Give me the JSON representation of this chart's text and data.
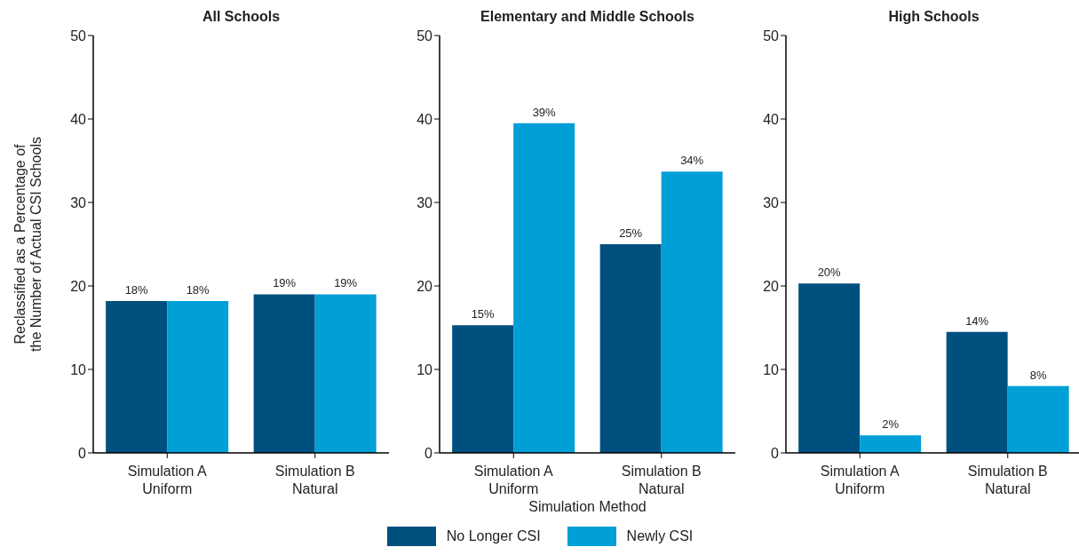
{
  "chart_data": [
    {
      "type": "bar",
      "title": "All Schools",
      "legend": "bottom",
      "ylabel": "Reclassified as a Percentage of\nthe Number of Actual CSI Schools",
      "categories": [
        "Simulation A\nUniform",
        "Simulation B\nNatural"
      ],
      "ylim": [
        0,
        50
      ],
      "yticks": [
        0,
        10,
        20,
        30,
        40,
        50
      ],
      "grid": false,
      "series": [
        {
          "name": "No Longer CSI",
          "color": "#00507f",
          "values": [
            18.2,
            19.0
          ],
          "value_labels": [
            "18%",
            "19%"
          ]
        },
        {
          "name": "Newly CSI",
          "color": "#009fd7",
          "values": [
            18.2,
            19.0
          ],
          "value_labels": [
            "18%",
            "19%"
          ]
        }
      ]
    },
    {
      "type": "bar",
      "title": "Elementary and Middle Schools",
      "xlabel": "Simulation Method",
      "categories": [
        "Simulation A\nUniform",
        "Simulation B\nNatural"
      ],
      "ylim": [
        0,
        50
      ],
      "yticks": [
        0,
        10,
        20,
        30,
        40,
        50
      ],
      "grid": false,
      "series": [
        {
          "color": "#00507f",
          "values": [
            15.3,
            25.0
          ],
          "value_labels": [
            "15%",
            "25%"
          ]
        },
        {
          "color": "#009fd7",
          "values": [
            39.5,
            33.7
          ],
          "value_labels": [
            "39%",
            "34%"
          ]
        }
      ]
    },
    {
      "type": "bar",
      "title": "High Schools",
      "categories": [
        "Simulation A\nUniform",
        "Simulation B\nNatural"
      ],
      "ylim": [
        0,
        50
      ],
      "yticks": [
        0,
        10,
        20,
        30,
        40,
        50
      ],
      "grid": false,
      "series": [
        {
          "color": "#00507f",
          "values": [
            20.3,
            14.5
          ],
          "value_labels": [
            "20%",
            "14%"
          ]
        },
        {
          "color": "#009fd7",
          "values": [
            2.1,
            8.0
          ],
          "value_labels": [
            "2%",
            "8%"
          ]
        }
      ]
    }
  ]
}
